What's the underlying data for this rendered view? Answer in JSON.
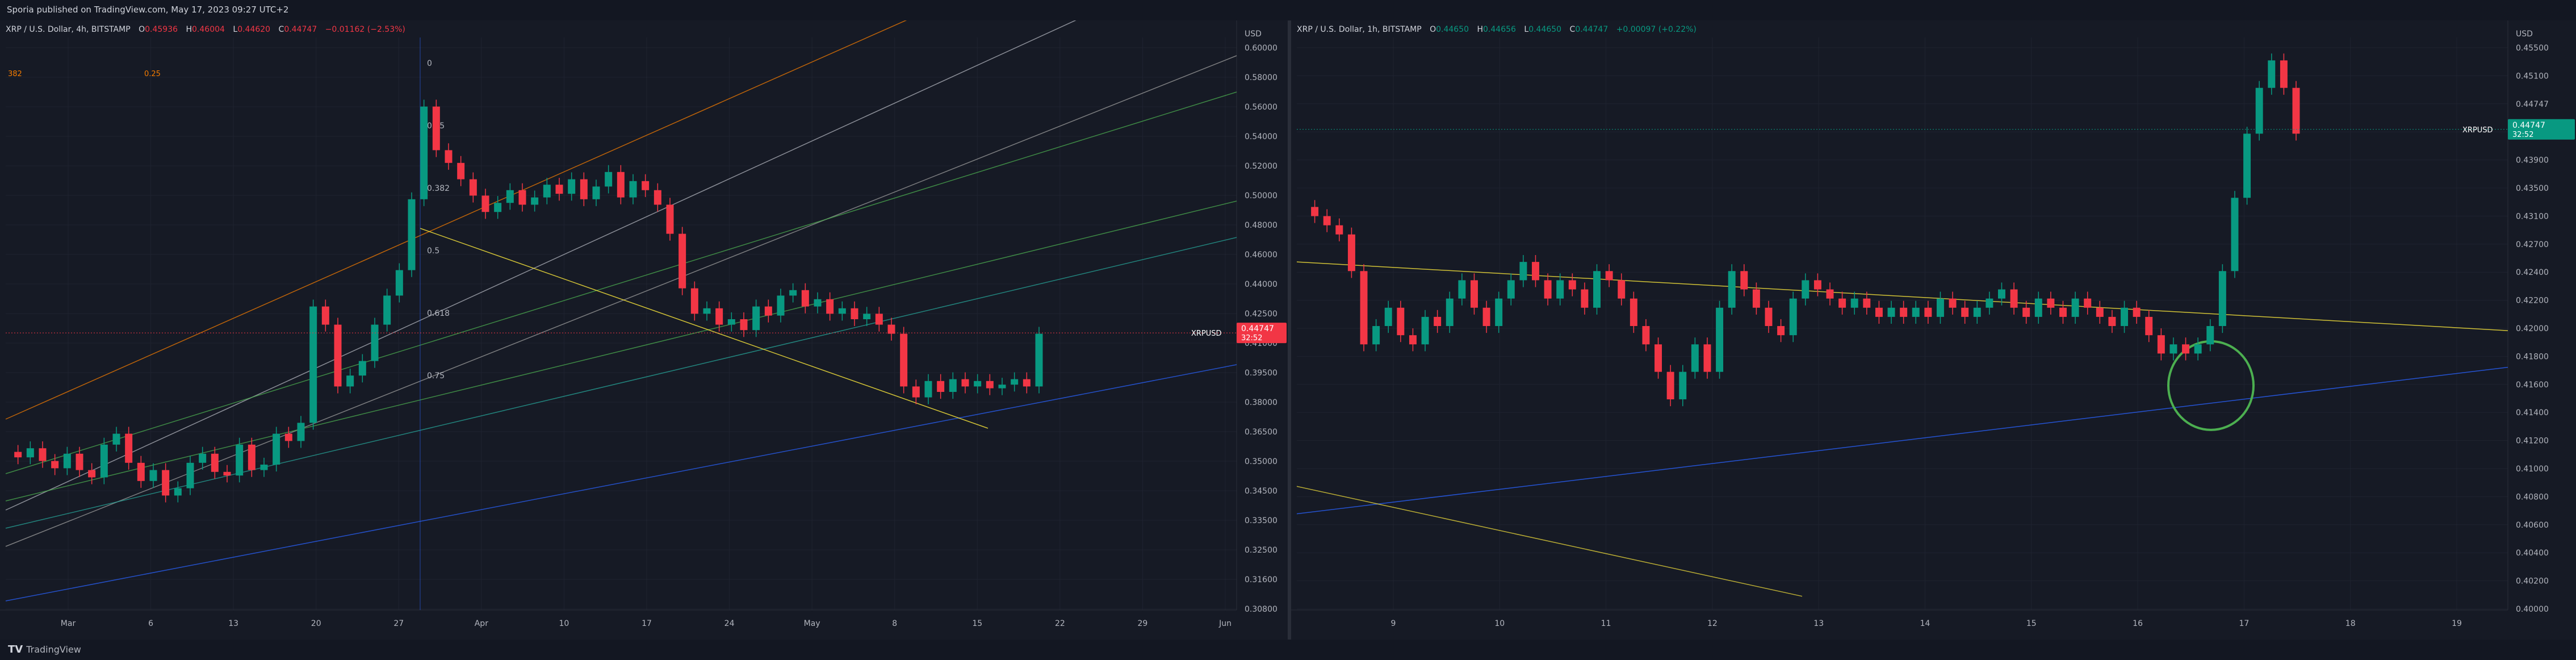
{
  "header": {
    "published": "Sporia published on TradingView.com, May 17, 2023 09:27 UTC+2"
  },
  "footer": {
    "brand": "TradingView"
  },
  "colors": {
    "up": "#089981",
    "down": "#f23645",
    "bg": "#161a25",
    "grid": "#1f2330",
    "axis_text": "#b2b5be"
  },
  "chart_data": [
    {
      "type": "candlestick",
      "symbol": "XRP / U.S. Dollar, 4h, BITSTAMP",
      "ohlc_label": {
        "o": "O",
        "o_val": "0.45936",
        "h": "H",
        "h_val": "0.46004",
        "l": "L",
        "l_val": "0.44620",
        "c": "C",
        "c_val": "0.44747",
        "chg": "−0.01162 (−2.53%)"
      },
      "currency": "USD",
      "ylim": [
        0.295,
        0.61
      ],
      "y_ticks": [
        "0.60000",
        "0.58000",
        "0.56000",
        "0.54000",
        "0.52000",
        "0.50000",
        "0.48000",
        "0.46000",
        "0.44000",
        "0.42500",
        "0.41000",
        "0.39500",
        "0.38000",
        "0.36500",
        "0.35000",
        "0.34500",
        "0.33500",
        "0.32500",
        "0.31600",
        "0.30800"
      ],
      "x_ticks": [
        "Mar",
        "6",
        "13",
        "20",
        "27",
        "Apr",
        "10",
        "17",
        "24",
        "May",
        "8",
        "15",
        "22",
        "29",
        "Jun"
      ],
      "last_price": {
        "symbol": "XRPUSD",
        "value": "0.44747",
        "timer": "32:52",
        "y": 0.44747
      },
      "fib_labels": [
        "0",
        "0.25",
        "0.382",
        "0.5",
        "0.618",
        "0.75"
      ],
      "fib_left_labels": [
        "382",
        "0.25"
      ],
      "price_path": [
        0.382,
        0.379,
        0.384,
        0.377,
        0.373,
        0.381,
        0.372,
        0.368,
        0.386,
        0.392,
        0.376,
        0.366,
        0.372,
        0.358,
        0.362,
        0.376,
        0.381,
        0.371,
        0.369,
        0.386,
        0.372,
        0.375,
        0.392,
        0.388,
        0.398,
        0.462,
        0.452,
        0.418,
        0.424,
        0.432,
        0.452,
        0.468,
        0.482,
        0.521,
        0.572,
        0.548,
        0.541,
        0.532,
        0.523,
        0.514,
        0.519,
        0.526,
        0.518,
        0.522,
        0.529,
        0.524,
        0.532,
        0.521,
        0.528,
        0.536,
        0.522,
        0.531,
        0.526,
        0.518,
        0.502,
        0.472,
        0.458,
        0.461,
        0.452,
        0.455,
        0.449,
        0.462,
        0.457,
        0.468,
        0.471,
        0.462,
        0.466,
        0.458,
        0.461,
        0.455,
        0.458,
        0.452,
        0.447,
        0.418,
        0.412,
        0.421,
        0.415,
        0.422,
        0.418,
        0.421,
        0.417,
        0.419,
        0.422,
        0.418,
        0.447
      ]
    },
    {
      "type": "candlestick",
      "symbol": "XRP / U.S. Dollar, 1h, BITSTAMP",
      "ohlc_label": {
        "o": "O",
        "o_val": "0.44650",
        "h": "H",
        "h_val": "0.44656",
        "l": "L",
        "l_val": "0.44650",
        "c": "C",
        "c_val": "0.44747",
        "chg": "+0.00097 (+0.22%)"
      },
      "currency": "USD",
      "ylim": [
        0.395,
        0.4575
      ],
      "y_ticks": [
        "0.45500",
        "0.45100",
        "0.44747",
        "0.44300",
        "0.43900",
        "0.43500",
        "0.43100",
        "0.42700",
        "0.42400",
        "0.42200",
        "0.42000",
        "0.41800",
        "0.41600",
        "0.41400",
        "0.41200",
        "0.41000",
        "0.40800",
        "0.40600",
        "0.40400",
        "0.40200",
        "0.40000"
      ],
      "x_ticks": [
        "9",
        "10",
        "11",
        "12",
        "13",
        "14",
        "15",
        "16",
        "17",
        "18",
        "19"
      ],
      "last_price": {
        "symbol": "XRPUSD",
        "value": "0.44747",
        "timer": "32:52",
        "y": 0.44747
      },
      "price_path": [
        0.439,
        0.438,
        0.437,
        0.436,
        0.432,
        0.424,
        0.426,
        0.428,
        0.425,
        0.424,
        0.427,
        0.426,
        0.429,
        0.431,
        0.428,
        0.426,
        0.429,
        0.431,
        0.433,
        0.431,
        0.429,
        0.431,
        0.43,
        0.428,
        0.432,
        0.431,
        0.429,
        0.426,
        0.424,
        0.421,
        0.418,
        0.421,
        0.424,
        0.421,
        0.428,
        0.432,
        0.43,
        0.428,
        0.426,
        0.425,
        0.429,
        0.431,
        0.43,
        0.429,
        0.428,
        0.429,
        0.428,
        0.427,
        0.428,
        0.427,
        0.428,
        0.427,
        0.429,
        0.428,
        0.427,
        0.428,
        0.429,
        0.43,
        0.428,
        0.427,
        0.429,
        0.428,
        0.427,
        0.429,
        0.428,
        0.427,
        0.426,
        0.428,
        0.427,
        0.425,
        0.423,
        0.424,
        0.423,
        0.424,
        0.426,
        0.432,
        0.44,
        0.447,
        0.452,
        0.455,
        0.452,
        0.447
      ]
    }
  ]
}
